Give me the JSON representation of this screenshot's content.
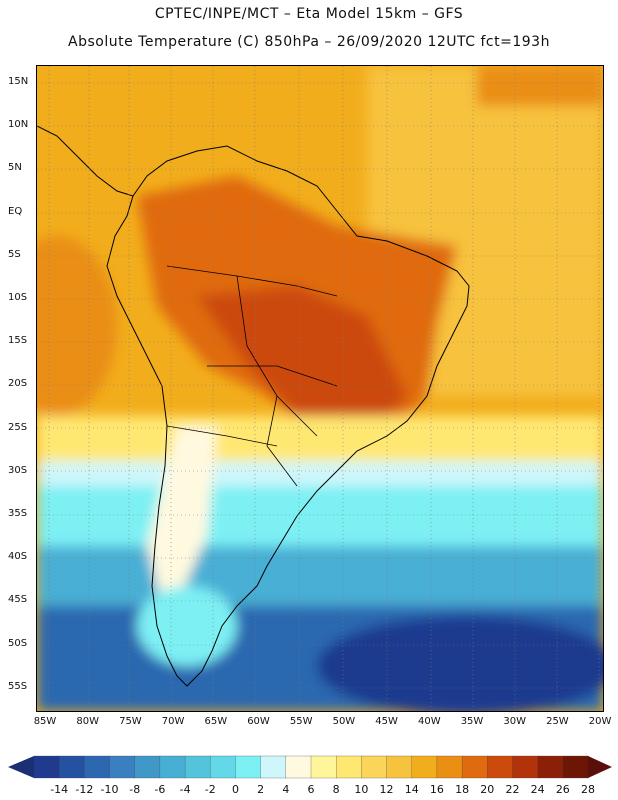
{
  "header": {
    "line1": "CPTEC/INPE/MCT –  Eta Model 15km – GFS",
    "line2": "Absolute Temperature (C) 850hPa – 26/09/2020 12UTC fct=193h"
  },
  "map": {
    "lat_ticks": [
      "15N",
      "10N",
      "5N",
      "EQ",
      "5S",
      "10S",
      "15S",
      "20S",
      "25S",
      "30S",
      "35S",
      "40S",
      "45S",
      "50S",
      "55S"
    ],
    "lon_ticks": [
      "85W",
      "80W",
      "75W",
      "70W",
      "65W",
      "60W",
      "55W",
      "50W",
      "45W",
      "40W",
      "35W",
      "30W",
      "25W",
      "20W"
    ]
  },
  "colorbar": {
    "labels": [
      "-14",
      "-12",
      "-10",
      "-8",
      "-6",
      "-4",
      "-2",
      "0",
      "2",
      "4",
      "6",
      "8",
      "10",
      "12",
      "14",
      "16",
      "18",
      "20",
      "22",
      "24",
      "26",
      "28"
    ],
    "colors": [
      "#1f3a8f",
      "#2451a0",
      "#2c67b0",
      "#3a80c0",
      "#3f98c8",
      "#48afd4",
      "#53c4dc",
      "#62d8e8",
      "#7df0f4",
      "#cff6fa",
      "#fff9e0",
      "#fff59a",
      "#ffe872",
      "#fbd45a",
      "#f7c23e",
      "#f2ad1c",
      "#ea8e14",
      "#e06a10",
      "#cc4a0c",
      "#b2320a",
      "#8c1f08",
      "#6e1606"
    ],
    "end_low": "#1b2f74",
    "end_high": "#5a0f0a"
  }
}
